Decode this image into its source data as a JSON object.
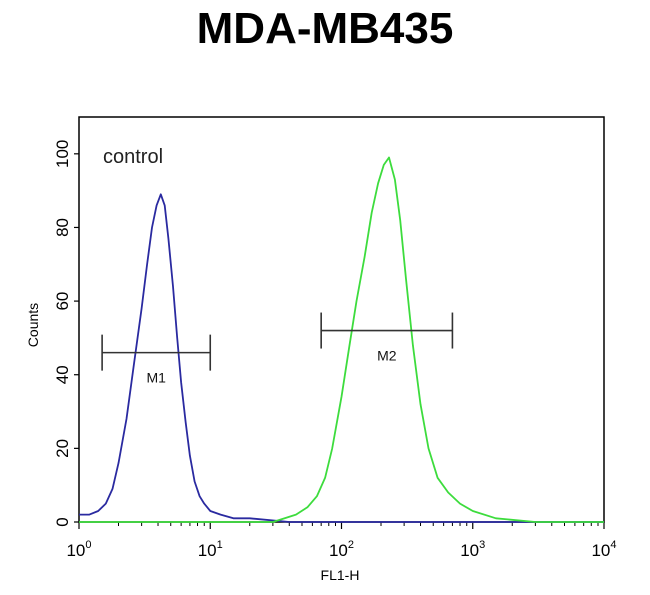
{
  "chart_data": {
    "type": "line",
    "title": "MDA-MB435",
    "xlabel": "FL1-H",
    "ylabel": "Counts",
    "x_scale": "log",
    "xlim": [
      1,
      10000
    ],
    "ylim": [
      0,
      110
    ],
    "x_ticks": [
      {
        "value": 1,
        "base": "10",
        "exp": "0"
      },
      {
        "value": 10,
        "base": "10",
        "exp": "1"
      },
      {
        "value": 100,
        "base": "10",
        "exp": "2"
      },
      {
        "value": 1000,
        "base": "10",
        "exp": "3"
      },
      {
        "value": 10000,
        "base": "10",
        "exp": "4"
      }
    ],
    "y_ticks": [
      0,
      20,
      40,
      60,
      80,
      100
    ],
    "grid": false,
    "annotation": "control",
    "series": [
      {
        "color": "#2a2aa0",
        "x": [
          1,
          1.2,
          1.4,
          1.6,
          1.8,
          2.0,
          2.3,
          2.6,
          3.0,
          3.3,
          3.6,
          3.9,
          4.2,
          4.5,
          4.8,
          5.2,
          5.6,
          6.0,
          6.5,
          7.0,
          7.6,
          8.3,
          9.0,
          10,
          12,
          15,
          20,
          40,
          100,
          300,
          1000,
          10000
        ],
        "y": [
          2,
          2,
          3,
          5,
          9,
          16,
          28,
          42,
          58,
          70,
          80,
          86,
          89,
          86,
          77,
          64,
          50,
          38,
          27,
          18,
          11,
          7,
          5,
          3,
          2,
          1,
          1,
          0,
          0,
          0,
          0,
          0
        ]
      },
      {
        "color": "#3ddc3d",
        "x": [
          1,
          10,
          30,
          45,
          55,
          65,
          75,
          85,
          100,
          115,
          130,
          150,
          170,
          190,
          210,
          230,
          255,
          280,
          310,
          350,
          400,
          460,
          540,
          650,
          800,
          1000,
          1500,
          3000,
          10000
        ],
        "y": [
          0,
          0,
          0,
          2,
          4,
          7,
          12,
          20,
          34,
          48,
          60,
          72,
          84,
          92,
          97,
          99,
          93,
          82,
          66,
          48,
          32,
          20,
          12,
          8,
          5,
          3,
          1,
          0,
          0
        ]
      }
    ],
    "markers": [
      {
        "label": "M1",
        "x_start": 1.5,
        "x_end": 10,
        "y": 46
      },
      {
        "label": "M2",
        "x_start": 70,
        "x_end": 700,
        "y": 52
      }
    ]
  }
}
